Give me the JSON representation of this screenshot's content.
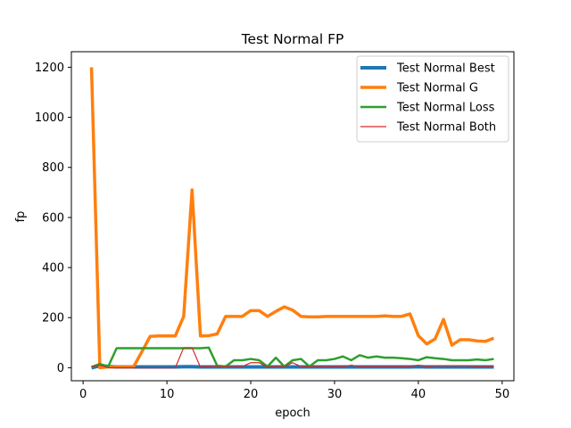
{
  "chart_data": {
    "type": "line",
    "title": "Test Normal FP",
    "xlabel": "epoch",
    "ylabel": "fp",
    "xlim": [
      -1.4,
      51.4
    ],
    "ylim": [
      -52,
      1262
    ],
    "xticks": [
      0,
      10,
      20,
      30,
      40,
      50
    ],
    "yticks": [
      0,
      200,
      400,
      600,
      800,
      1000,
      1200
    ],
    "grid": false,
    "legend_position": "top-right",
    "x": [
      1,
      2,
      3,
      4,
      5,
      6,
      7,
      8,
      9,
      10,
      11,
      12,
      13,
      14,
      15,
      16,
      17,
      18,
      19,
      20,
      21,
      22,
      23,
      24,
      25,
      26,
      27,
      28,
      29,
      30,
      31,
      32,
      33,
      34,
      35,
      36,
      37,
      38,
      39,
      40,
      41,
      42,
      43,
      44,
      45,
      46,
      47,
      48,
      49
    ],
    "series": [
      {
        "name": "Test Normal Best",
        "color": "#1f77b4",
        "width": 4,
        "values": [
          0,
          8,
          5,
          3,
          3,
          3,
          3,
          3,
          3,
          3,
          3,
          4,
          4,
          3,
          3,
          3,
          3,
          3,
          3,
          3,
          3,
          3,
          3,
          3,
          3,
          3,
          3,
          3,
          3,
          3,
          3,
          3,
          3,
          3,
          3,
          3,
          3,
          3,
          3,
          4,
          3,
          3,
          3,
          3,
          3,
          3,
          3,
          3,
          3
        ]
      },
      {
        "name": "Test Normal G",
        "color": "#ff7f0e",
        "width": 3.5,
        "values": [
          1200,
          0,
          3,
          3,
          3,
          3,
          63,
          125,
          127,
          127,
          127,
          205,
          710,
          127,
          128,
          135,
          205,
          205,
          205,
          228,
          228,
          205,
          225,
          243,
          230,
          205,
          203,
          203,
          205,
          205,
          205,
          205,
          205,
          205,
          205,
          207,
          205,
          205,
          215,
          128,
          95,
          115,
          193,
          90,
          112,
          112,
          107,
          105,
          118
        ]
      },
      {
        "name": "Test Normal Loss",
        "color": "#2ca02c",
        "width": 2.5,
        "values": [
          3,
          15,
          5,
          78,
          78,
          78,
          78,
          78,
          78,
          78,
          78,
          78,
          78,
          78,
          80,
          8,
          5,
          30,
          30,
          35,
          30,
          5,
          40,
          5,
          30,
          35,
          5,
          30,
          30,
          35,
          45,
          30,
          50,
          40,
          45,
          40,
          40,
          38,
          35,
          30,
          42,
          38,
          35,
          30,
          30,
          30,
          33,
          30,
          35
        ]
      },
      {
        "name": "Test Normal Both",
        "color": "#d62728",
        "width": 1.2,
        "values": [
          5,
          10,
          0,
          0,
          0,
          0,
          0,
          0,
          0,
          0,
          0,
          80,
          80,
          2,
          5,
          5,
          5,
          5,
          5,
          20,
          20,
          2,
          5,
          5,
          20,
          5,
          5,
          5,
          5,
          5,
          5,
          10,
          5,
          5,
          5,
          5,
          5,
          5,
          5,
          10,
          5,
          8,
          8,
          8,
          8,
          8,
          5,
          5,
          5
        ]
      }
    ]
  }
}
